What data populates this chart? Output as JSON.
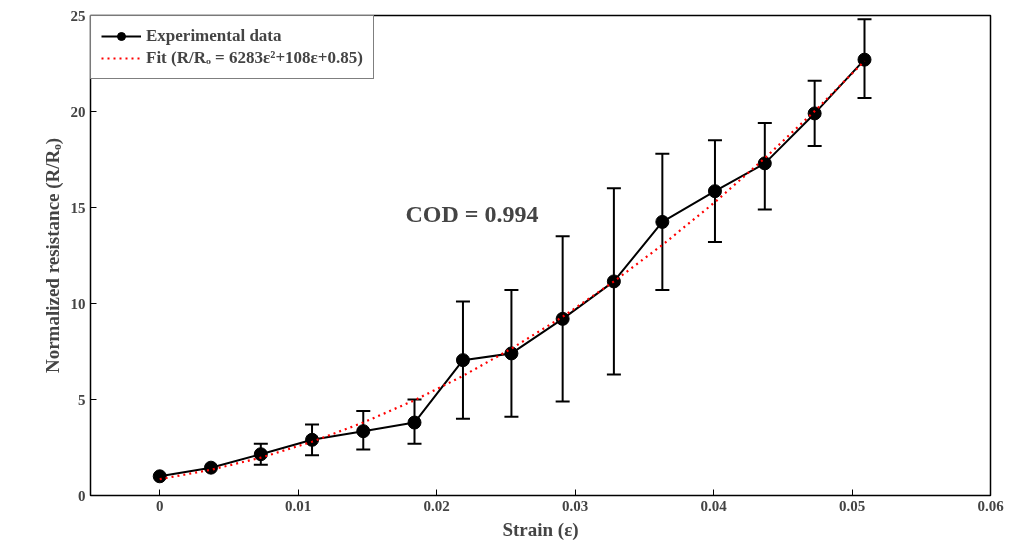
{
  "chart_data": {
    "type": "line",
    "xlabel": "Strain (ε)",
    "ylabel": "Normalized resistance (R/Rₒ)",
    "xlim": [
      -0.005,
      0.06
    ],
    "xticks": [
      0,
      0.01,
      0.02,
      0.03,
      0.04,
      0.05,
      0.06
    ],
    "ylim": [
      0,
      25
    ],
    "yticks": [
      0,
      5,
      10,
      15,
      20,
      25
    ],
    "grid": false,
    "legend": "top left",
    "annotations": [
      "COD = 0.994"
    ],
    "series": [
      {
        "name": "Experimental data",
        "color": "#000000",
        "marker": "circle",
        "line_style": "solid",
        "x": [
          0,
          0.0037,
          0.0073,
          0.011,
          0.0147,
          0.0184,
          0.0219,
          0.0254,
          0.0291,
          0.0328,
          0.0363,
          0.0401,
          0.0437,
          0.0473,
          0.0509
        ],
        "values": [
          1.0,
          1.45,
          2.15,
          2.9,
          3.35,
          3.8,
          7.05,
          7.4,
          9.2,
          11.15,
          14.25,
          15.85,
          17.3,
          19.9,
          22.7
        ],
        "errors": [
          null,
          null,
          [
            1.6,
            2.7
          ],
          [
            2.1,
            3.7
          ],
          [
            2.4,
            4.4
          ],
          [
            2.7,
            5.0
          ],
          [
            4.0,
            10.1
          ],
          [
            4.1,
            10.7
          ],
          [
            4.9,
            13.5
          ],
          [
            6.3,
            16.0
          ],
          [
            10.7,
            17.8
          ],
          [
            13.2,
            18.5
          ],
          [
            14.9,
            19.4
          ],
          [
            18.2,
            21.6
          ],
          [
            20.7,
            24.8
          ]
        ]
      },
      {
        "name": "Fit (R/Rₒ = 6283ε²+108ε+0.85)",
        "type": "line",
        "color": "#ff0000",
        "marker": "none",
        "line_style": "dotted",
        "x": [
          0,
          0.0037,
          0.0073,
          0.011,
          0.0147,
          0.0184,
          0.0219,
          0.0254,
          0.0291,
          0.0328,
          0.0363,
          0.0401,
          0.0437,
          0.0473,
          0.0509
        ],
        "values": [
          0.85,
          1.34,
          1.97,
          2.8,
          3.8,
          4.96,
          6.23,
          7.65,
          9.31,
          11.15,
          13.05,
          15.28,
          17.57,
          20.02,
          22.63
        ]
      }
    ]
  }
}
